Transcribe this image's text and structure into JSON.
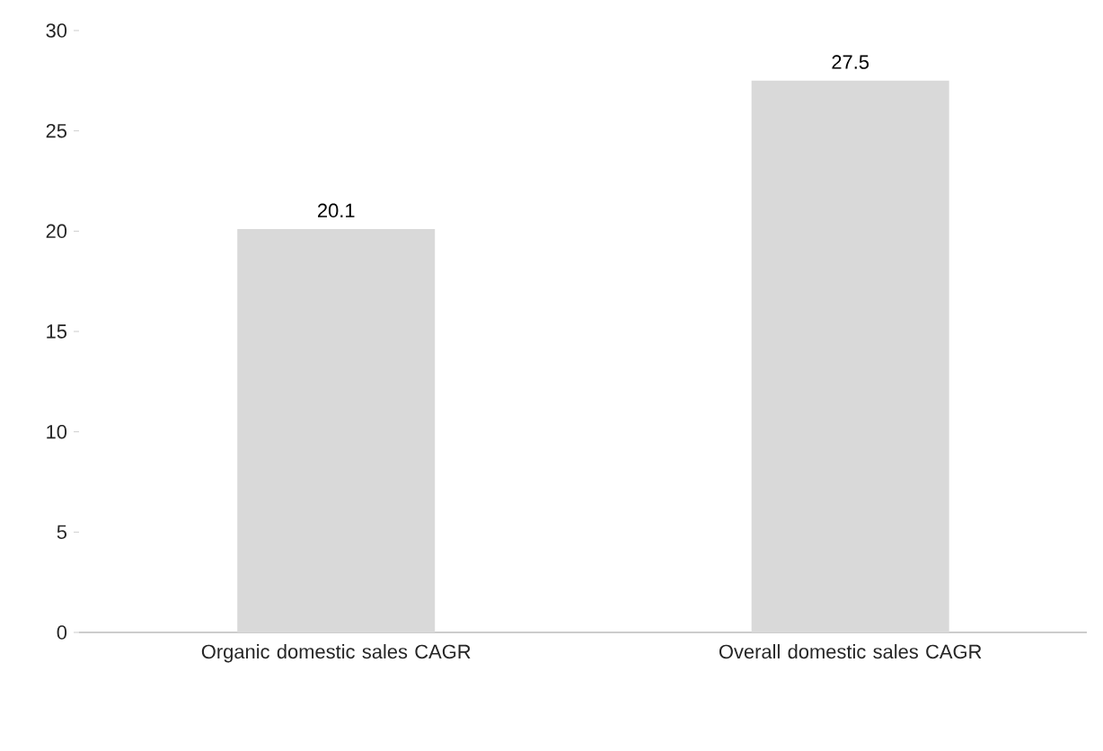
{
  "chart_data": {
    "type": "bar",
    "categories": [
      "Organic domestic sales CAGR",
      "Overall domestic sales CAGR"
    ],
    "values": [
      20.1,
      27.5
    ],
    "color": "#d9d9d9",
    "ylim": [
      0,
      30
    ],
    "yticks": [
      0,
      5,
      10,
      15,
      20,
      25,
      30
    ],
    "data_labels": true
  }
}
